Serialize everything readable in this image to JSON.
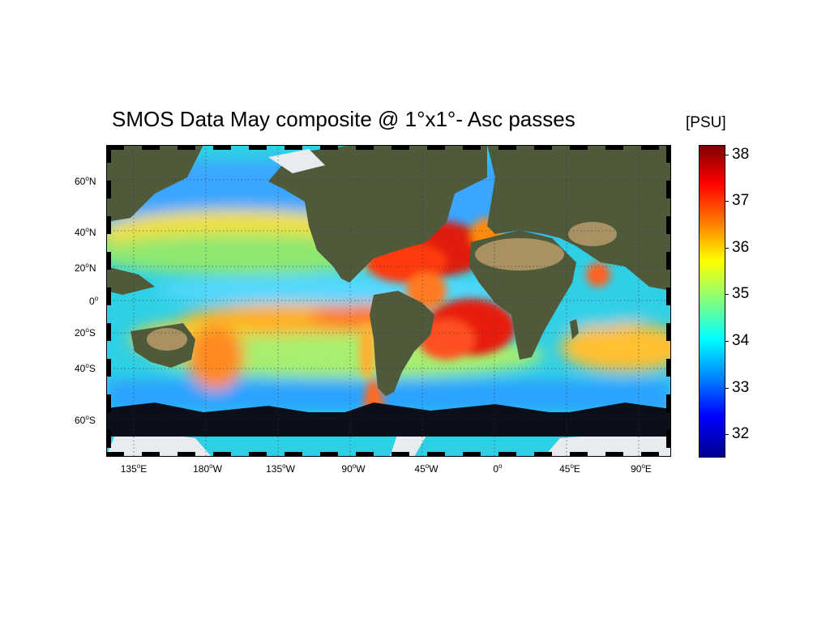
{
  "title": "SMOS Data May composite @ 1°x1°- Asc passes",
  "units": "[PSU]",
  "map": {
    "projection": "equirectangular",
    "lon_labels": [
      {
        "deg": "135",
        "hemi": "E"
      },
      {
        "deg": "180",
        "hemi": "W"
      },
      {
        "deg": "135",
        "hemi": "W"
      },
      {
        "deg": "90",
        "hemi": "W"
      },
      {
        "deg": "45",
        "hemi": "W"
      },
      {
        "deg": "0",
        "hemi": ""
      },
      {
        "deg": "45",
        "hemi": "E"
      },
      {
        "deg": "90",
        "hemi": "E"
      }
    ],
    "lat_labels": [
      {
        "deg": "60",
        "hemi": "N"
      },
      {
        "deg": "40",
        "hemi": "N"
      },
      {
        "deg": "20",
        "hemi": "N"
      },
      {
        "deg": "0",
        "hemi": ""
      },
      {
        "deg": "20",
        "hemi": "S"
      },
      {
        "deg": "40",
        "hemi": "S"
      },
      {
        "deg": "60",
        "hemi": "S"
      }
    ],
    "grid": "dotted",
    "colors": {
      "land": "#4f5a3a",
      "desert": "#b89b6a",
      "ice": "#e8ecf0",
      "no_data": "#0b0f1a"
    }
  },
  "colorbar": {
    "ticks": [
      "38",
      "37",
      "36",
      "35",
      "34",
      "33",
      "32"
    ],
    "min": 31.5,
    "max": 38.2,
    "colormap": "jet"
  }
}
